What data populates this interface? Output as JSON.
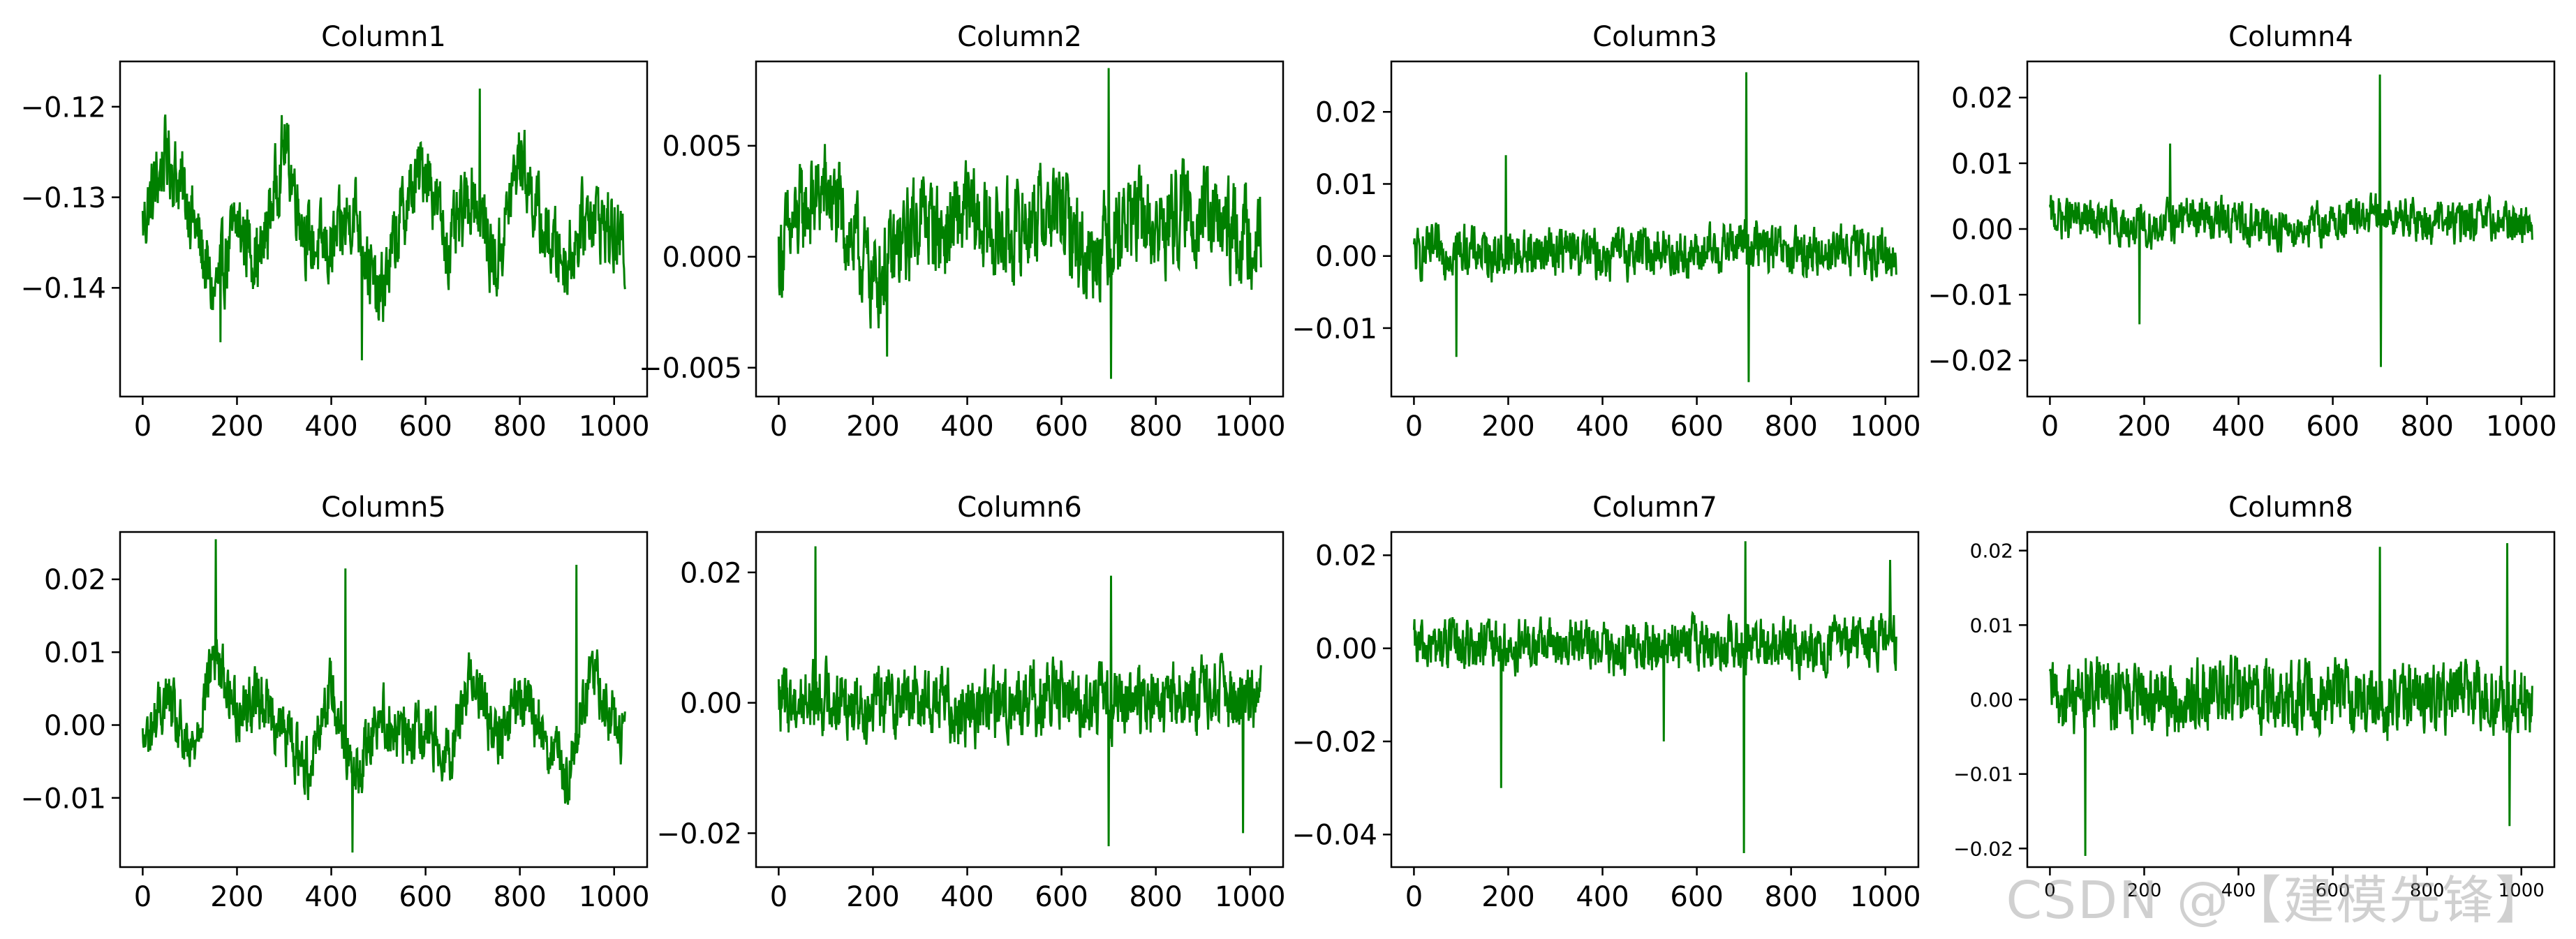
{
  "watermark": "CSDN @【建模先锋】",
  "colors": {
    "line": "#008000",
    "axis": "#000000",
    "background": "#ffffff"
  },
  "chart_data": [
    {
      "type": "line",
      "title": "Column1",
      "xlim": [
        -48,
        1070
      ],
      "ylim": [
        -0.152,
        -0.115
      ],
      "xticks": [
        0,
        200,
        400,
        600,
        800,
        1000
      ],
      "yticks": [
        -0.14,
        -0.13,
        -0.12
      ],
      "ytick_labels": [
        "−0.14",
        "−0.13",
        "−0.12"
      ],
      "series": [
        {
          "n": 1024,
          "x": [
            0,
            50,
            100,
            150,
            200,
            250,
            300,
            350,
            400,
            450,
            500,
            550,
            600,
            650,
            700,
            750,
            800,
            850,
            900,
            950,
            1023
          ],
          "y": [
            -0.133,
            -0.125,
            -0.131,
            -0.141,
            -0.133,
            -0.137,
            -0.124,
            -0.135,
            -0.136,
            -0.131,
            -0.142,
            -0.132,
            -0.126,
            -0.136,
            -0.129,
            -0.138,
            -0.125,
            -0.134,
            -0.137,
            -0.131,
            -0.136
          ],
          "noise": 0.0035,
          "spikes": [
            [
              465,
              -0.148
            ],
            [
              715,
              -0.118
            ],
            [
              165,
              -0.146
            ]
          ]
        }
      ]
    },
    {
      "type": "line",
      "title": "Column2",
      "xlim": [
        -48,
        1070
      ],
      "ylim": [
        -0.0063,
        0.0088
      ],
      "xticks": [
        0,
        200,
        400,
        600,
        800,
        1000
      ],
      "yticks": [
        -0.005,
        0.0,
        0.005
      ],
      "ytick_labels": [
        "−0.005",
        "0.000",
        "0.005"
      ],
      "series": [
        {
          "n": 1024,
          "x": [
            0,
            50,
            100,
            150,
            200,
            250,
            300,
            350,
            400,
            450,
            500,
            550,
            600,
            650,
            700,
            750,
            800,
            850,
            900,
            950,
            1023
          ],
          "y": [
            0.0,
            0.002,
            0.003,
            0.001,
            -0.001,
            0.0,
            0.002,
            0.001,
            0.002,
            0.001,
            0.001,
            0.002,
            0.002,
            0.0,
            0.001,
            0.002,
            0.001,
            0.002,
            0.002,
            0.001,
            0.001
          ],
          "noise": 0.0018,
          "spikes": [
            [
              700,
              0.0085
            ],
            [
              705,
              -0.0055
            ],
            [
              230,
              -0.0045
            ]
          ]
        }
      ]
    },
    {
      "type": "line",
      "title": "Column3",
      "xlim": [
        -48,
        1070
      ],
      "ylim": [
        -0.0195,
        0.027
      ],
      "xticks": [
        0,
        200,
        400,
        600,
        800,
        1000
      ],
      "yticks": [
        -0.01,
        0.0,
        0.01,
        0.02
      ],
      "ytick_labels": [
        "−0.01",
        "0.00",
        "0.01",
        "0.02"
      ],
      "series": [
        {
          "n": 1024,
          "x": [
            0,
            100,
            200,
            300,
            400,
            500,
            600,
            700,
            800,
            900,
            1023
          ],
          "y": [
            0.0,
            0.001,
            0.0,
            0.001,
            0.0,
            0.001,
            0.0,
            0.002,
            0.0,
            0.001,
            0.0
          ],
          "noise": 0.0028,
          "spikes": [
            [
              705,
              0.0255
            ],
            [
              710,
              -0.0175
            ],
            [
              90,
              -0.014
            ],
            [
              195,
              0.014
            ]
          ]
        }
      ]
    },
    {
      "type": "line",
      "title": "Column4",
      "xlim": [
        -48,
        1070
      ],
      "ylim": [
        -0.0255,
        0.0255
      ],
      "xticks": [
        0,
        200,
        400,
        600,
        800,
        1000
      ],
      "yticks": [
        -0.02,
        -0.01,
        0.0,
        0.01,
        0.02
      ],
      "ytick_labels": [
        "−0.02",
        "−0.01",
        "0.00",
        "0.01",
        "0.02"
      ],
      "series": [
        {
          "n": 1024,
          "x": [
            0,
            100,
            200,
            300,
            400,
            500,
            600,
            700,
            800,
            900,
            1023
          ],
          "y": [
            0.002,
            0.001,
            0.0,
            0.002,
            0.001,
            0.0,
            0.001,
            0.002,
            0.001,
            0.001,
            0.001
          ],
          "noise": 0.0026,
          "spikes": [
            [
              700,
              0.0235
            ],
            [
              702,
              -0.021
            ],
            [
              190,
              -0.0145
            ],
            [
              255,
              0.013
            ]
          ]
        }
      ]
    },
    {
      "type": "line",
      "title": "Column5",
      "xlim": [
        -48,
        1070
      ],
      "ylim": [
        -0.0195,
        0.0265
      ],
      "xticks": [
        0,
        200,
        400,
        600,
        800,
        1000
      ],
      "yticks": [
        -0.01,
        0.0,
        0.01,
        0.02
      ],
      "ytick_labels": [
        "−0.01",
        "0.00",
        "0.01",
        "0.02"
      ],
      "series": [
        {
          "n": 1024,
          "x": [
            0,
            50,
            100,
            150,
            200,
            250,
            300,
            350,
            400,
            450,
            500,
            550,
            600,
            650,
            700,
            750,
            800,
            850,
            900,
            950,
            1023
          ],
          "y": [
            -0.003,
            0.004,
            -0.005,
            0.01,
            0.002,
            0.004,
            -0.001,
            -0.006,
            0.006,
            -0.008,
            0.002,
            -0.002,
            0.0,
            -0.004,
            0.008,
            -0.003,
            0.004,
            -0.001,
            -0.008,
            0.008,
            -0.003
          ],
          "noise": 0.0035,
          "spikes": [
            [
              155,
              0.0255
            ],
            [
              430,
              0.0215
            ],
            [
              445,
              -0.0175
            ],
            [
              920,
              0.022
            ]
          ]
        }
      ]
    },
    {
      "type": "line",
      "title": "Column6",
      "xlim": [
        -48,
        1070
      ],
      "ylim": [
        -0.0252,
        0.0262
      ],
      "xticks": [
        0,
        200,
        400,
        600,
        800,
        1000
      ],
      "yticks": [
        -0.02,
        0.0,
        0.02
      ],
      "ytick_labels": [
        "−0.02",
        "0.00",
        "0.02"
      ],
      "series": [
        {
          "n": 1024,
          "x": [
            0,
            100,
            200,
            300,
            400,
            500,
            600,
            700,
            800,
            900,
            1023
          ],
          "y": [
            0.0,
            0.001,
            0.0,
            0.001,
            -0.001,
            0.0,
            0.001,
            0.0,
            0.0,
            0.001,
            0.0
          ],
          "noise": 0.0045,
          "spikes": [
            [
              78,
              0.024
            ],
            [
              700,
              -0.022
            ],
            [
              705,
              0.0195
            ],
            [
              985,
              -0.02
            ]
          ]
        }
      ]
    },
    {
      "type": "line",
      "title": "Column7",
      "xlim": [
        -48,
        1070
      ],
      "ylim": [
        -0.047,
        0.025
      ],
      "xticks": [
        0,
        200,
        400,
        600,
        800,
        1000
      ],
      "yticks": [
        -0.04,
        -0.02,
        0.0,
        0.02
      ],
      "ytick_labels": [
        "−0.04",
        "−0.02",
        "0.00",
        "0.02"
      ],
      "series": [
        {
          "n": 1024,
          "x": [
            0,
            100,
            200,
            300,
            400,
            500,
            600,
            700,
            800,
            900,
            1023
          ],
          "y": [
            0.0,
            0.001,
            0.0,
            0.001,
            0.0,
            0.0,
            0.001,
            0.001,
            0.0,
            0.001,
            0.002
          ],
          "noise": 0.0045,
          "spikes": [
            [
              700,
              -0.044
            ],
            [
              703,
              0.023
            ],
            [
              185,
              -0.03
            ],
            [
              530,
              -0.02
            ],
            [
              1010,
              0.019
            ]
          ]
        }
      ]
    },
    {
      "type": "line",
      "title": "Column8",
      "xlim": [
        -48,
        1070
      ],
      "ylim": [
        -0.0225,
        0.0225
      ],
      "xticks": [
        0,
        200,
        400,
        600,
        800,
        1000
      ],
      "yticks": [
        -0.02,
        -0.01,
        0.0,
        0.01,
        0.02
      ],
      "ytick_labels": [
        "−0.02",
        "−0.01",
        "0.00",
        "0.01",
        "0.02"
      ],
      "tick_font": "small",
      "series": [
        {
          "n": 1024,
          "x": [
            0,
            100,
            200,
            300,
            400,
            500,
            600,
            700,
            800,
            900,
            1023
          ],
          "y": [
            0.0,
            0.001,
            0.0,
            0.0,
            0.001,
            0.0,
            0.001,
            0.0,
            0.0,
            0.001,
            0.0
          ],
          "noise": 0.004,
          "spikes": [
            [
              75,
              -0.021
            ],
            [
              700,
              0.0205
            ],
            [
              970,
              0.021
            ],
            [
              975,
              -0.017
            ]
          ]
        }
      ]
    }
  ]
}
